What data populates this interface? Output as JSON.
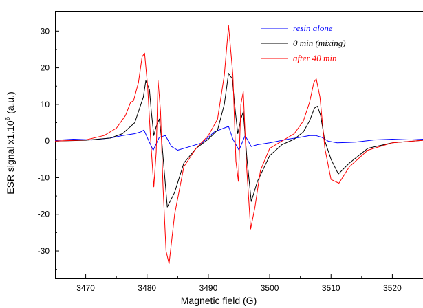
{
  "chart_data": {
    "type": "line",
    "xlabel": "Magnetic field (G)",
    "ylabel": {
      "main": "ESR signal x1.10",
      "sup": "6",
      "tail": " (a.u.)"
    },
    "xlim": [
      3465,
      3525
    ],
    "ylim": [
      -37.5,
      35.5
    ],
    "xticks": [
      3470,
      3480,
      3490,
      3500,
      3510,
      3520
    ],
    "yticks": [
      30,
      20,
      10,
      0,
      -10,
      -20,
      -30
    ],
    "grid": false,
    "legend_position": "top-right",
    "series": [
      {
        "name": "resin alone",
        "color": "#0000ff",
        "lw": 1,
        "x": [
          3465,
          3468,
          3471,
          3474,
          3476,
          3478,
          3479,
          3479.5,
          3480.3,
          3481,
          3482,
          3483,
          3484,
          3485,
          3487,
          3489,
          3491,
          3492.5,
          3493.3,
          3494,
          3495,
          3496,
          3497,
          3498,
          3500,
          3503,
          3505,
          3506.5,
          3507.5,
          3508.5,
          3509.5,
          3511,
          3514,
          3517,
          3520,
          3523,
          3525
        ],
        "y": [
          0.2,
          0.5,
          0.3,
          0.8,
          1.5,
          2.0,
          2.5,
          3.0,
          0.0,
          -2.5,
          1.0,
          1.5,
          -1.5,
          -2.5,
          -1.5,
          -0.5,
          2.5,
          3.5,
          4.0,
          0.5,
          -2.5,
          1.5,
          -1.5,
          -1.0,
          -0.5,
          0.5,
          1.0,
          1.5,
          1.5,
          1.0,
          0.0,
          -0.5,
          -0.3,
          0.3,
          0.5,
          0.3,
          0.5
        ]
      },
      {
        "name": "0 min (mixing)",
        "color": "#000000",
        "lw": 1,
        "x": [
          3465,
          3470,
          3474,
          3476,
          3478,
          3479.4,
          3479.8,
          3480.4,
          3480.7,
          3481.1,
          3481.5,
          3482,
          3482.4,
          3482.8,
          3483.3,
          3484.5,
          3486,
          3488,
          3490,
          3491.5,
          3492.6,
          3493.3,
          3493.9,
          3494.4,
          3494.8,
          3495.3,
          3495.7,
          3496.3,
          3497,
          3498,
          3500,
          3502,
          3504,
          3505.5,
          3506.5,
          3507.3,
          3507.8,
          3508.3,
          3509,
          3510,
          3511.2,
          3513,
          3516,
          3520,
          3525
        ],
        "y": [
          0,
          0.2,
          0.8,
          2.0,
          5.0,
          12.0,
          16.5,
          14.0,
          8.0,
          1.5,
          4.0,
          6.0,
          0.0,
          -8.0,
          -18.0,
          -14.0,
          -6.0,
          -2.0,
          0.5,
          3.0,
          10.0,
          18.5,
          17.0,
          8.0,
          2.0,
          6.0,
          8.0,
          -5.0,
          -16.5,
          -11.0,
          -4.0,
          -1.0,
          0.5,
          2.5,
          5.5,
          9.0,
          9.5,
          7.0,
          0.0,
          -5.0,
          -9.0,
          -6.0,
          -2.0,
          -0.5,
          0.2
        ]
      },
      {
        "name": "after 40 min",
        "color": "#ff0000",
        "lw": 1,
        "x": [
          3465,
          3470,
          3473,
          3475,
          3476.5,
          3477.3,
          3477.8,
          3478.6,
          3479.2,
          3479.6,
          3480.1,
          3480.6,
          3481.1,
          3481.5,
          3481.8,
          3482.2,
          3482.6,
          3483.1,
          3483.6,
          3484.5,
          3486,
          3488,
          3490,
          3491.5,
          3492.6,
          3493.3,
          3494,
          3494.5,
          3494.9,
          3495.3,
          3495.7,
          3496.2,
          3496.9,
          3497.6,
          3498.5,
          3500,
          3502,
          3504,
          3505.5,
          3506.5,
          3507.2,
          3507.6,
          3508.2,
          3509,
          3510,
          3511.3,
          3513,
          3516,
          3520,
          3525
        ],
        "y": [
          0,
          0.3,
          1.5,
          3.5,
          7.0,
          10.5,
          11.0,
          16.0,
          23.0,
          24.0,
          15.0,
          0.0,
          -12.5,
          -3.0,
          16.5,
          8.0,
          -12.0,
          -30.0,
          -33.5,
          -20.0,
          -7.0,
          -2.0,
          1.5,
          6.0,
          18.0,
          31.5,
          18.0,
          -5.5,
          -11.0,
          10.0,
          13.5,
          -6.0,
          -24.0,
          -18.0,
          -8.0,
          -2.0,
          0.0,
          2.0,
          5.5,
          10.5,
          16.0,
          17.0,
          12.0,
          -2.0,
          -10.5,
          -11.5,
          -7.0,
          -2.5,
          -0.5,
          0.2
        ]
      }
    ]
  }
}
